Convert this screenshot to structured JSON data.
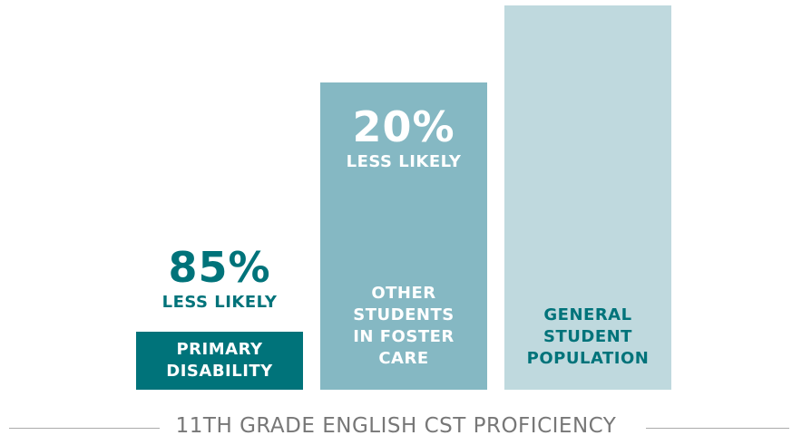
{
  "chart_data": {
    "type": "bar",
    "title": "11TH GRADE ENGLISH CST PROFICIENCY",
    "categories": [
      "PRIMARY DISABILITY",
      "OTHER STUDENTS IN FOSTER CARE",
      "GENERAL STUDENT POPULATION"
    ],
    "values": [
      15,
      80,
      100
    ],
    "colors": [
      "#00737a",
      "#85b8c3",
      "#bfd9de"
    ],
    "label_colors": [
      "#ffffff",
      "#ffffff",
      "#00737a"
    ],
    "annotations": [
      [
        "85%",
        "LESS LIKELY"
      ],
      [
        "20%",
        "LESS LIKELY"
      ],
      null
    ],
    "ylim": [
      0,
      100
    ]
  }
}
